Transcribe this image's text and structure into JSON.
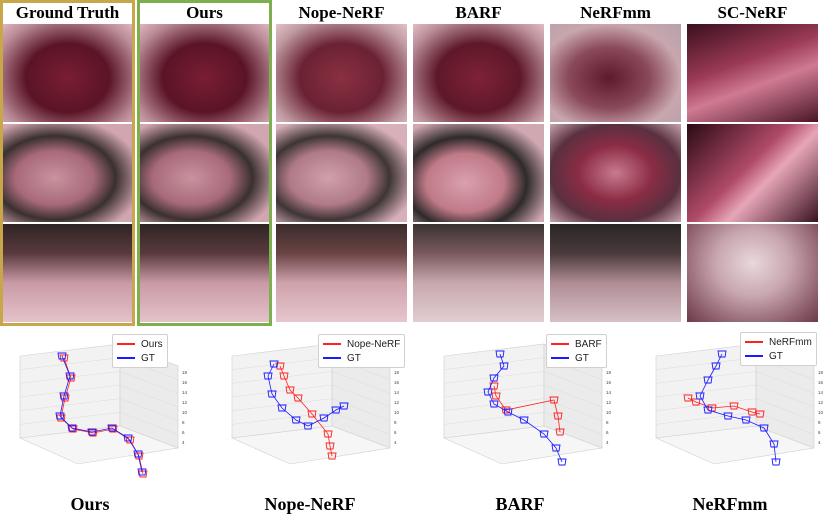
{
  "columns": [
    "Ground Truth",
    "Ours",
    "Nope-NeRF",
    "BARF",
    "NeRFmm",
    "SC-NeRF"
  ],
  "frame_colors": {
    "ground_truth": "#c8a64a",
    "ours": "#7fae4f"
  },
  "trajectory_plots": [
    {
      "caption": "Ours",
      "legend": [
        "Ours",
        "GT"
      ]
    },
    {
      "caption": "Nope-NeRF",
      "legend": [
        "Nope-NeRF",
        "GT"
      ]
    },
    {
      "caption": "BARF",
      "legend": [
        "BARF",
        "GT"
      ]
    },
    {
      "caption": "NeRFmm",
      "legend": [
        "NeRFmm",
        "GT"
      ]
    }
  ],
  "series_colors": {
    "method": "#ff2020",
    "gt": "#1a1aff"
  }
}
